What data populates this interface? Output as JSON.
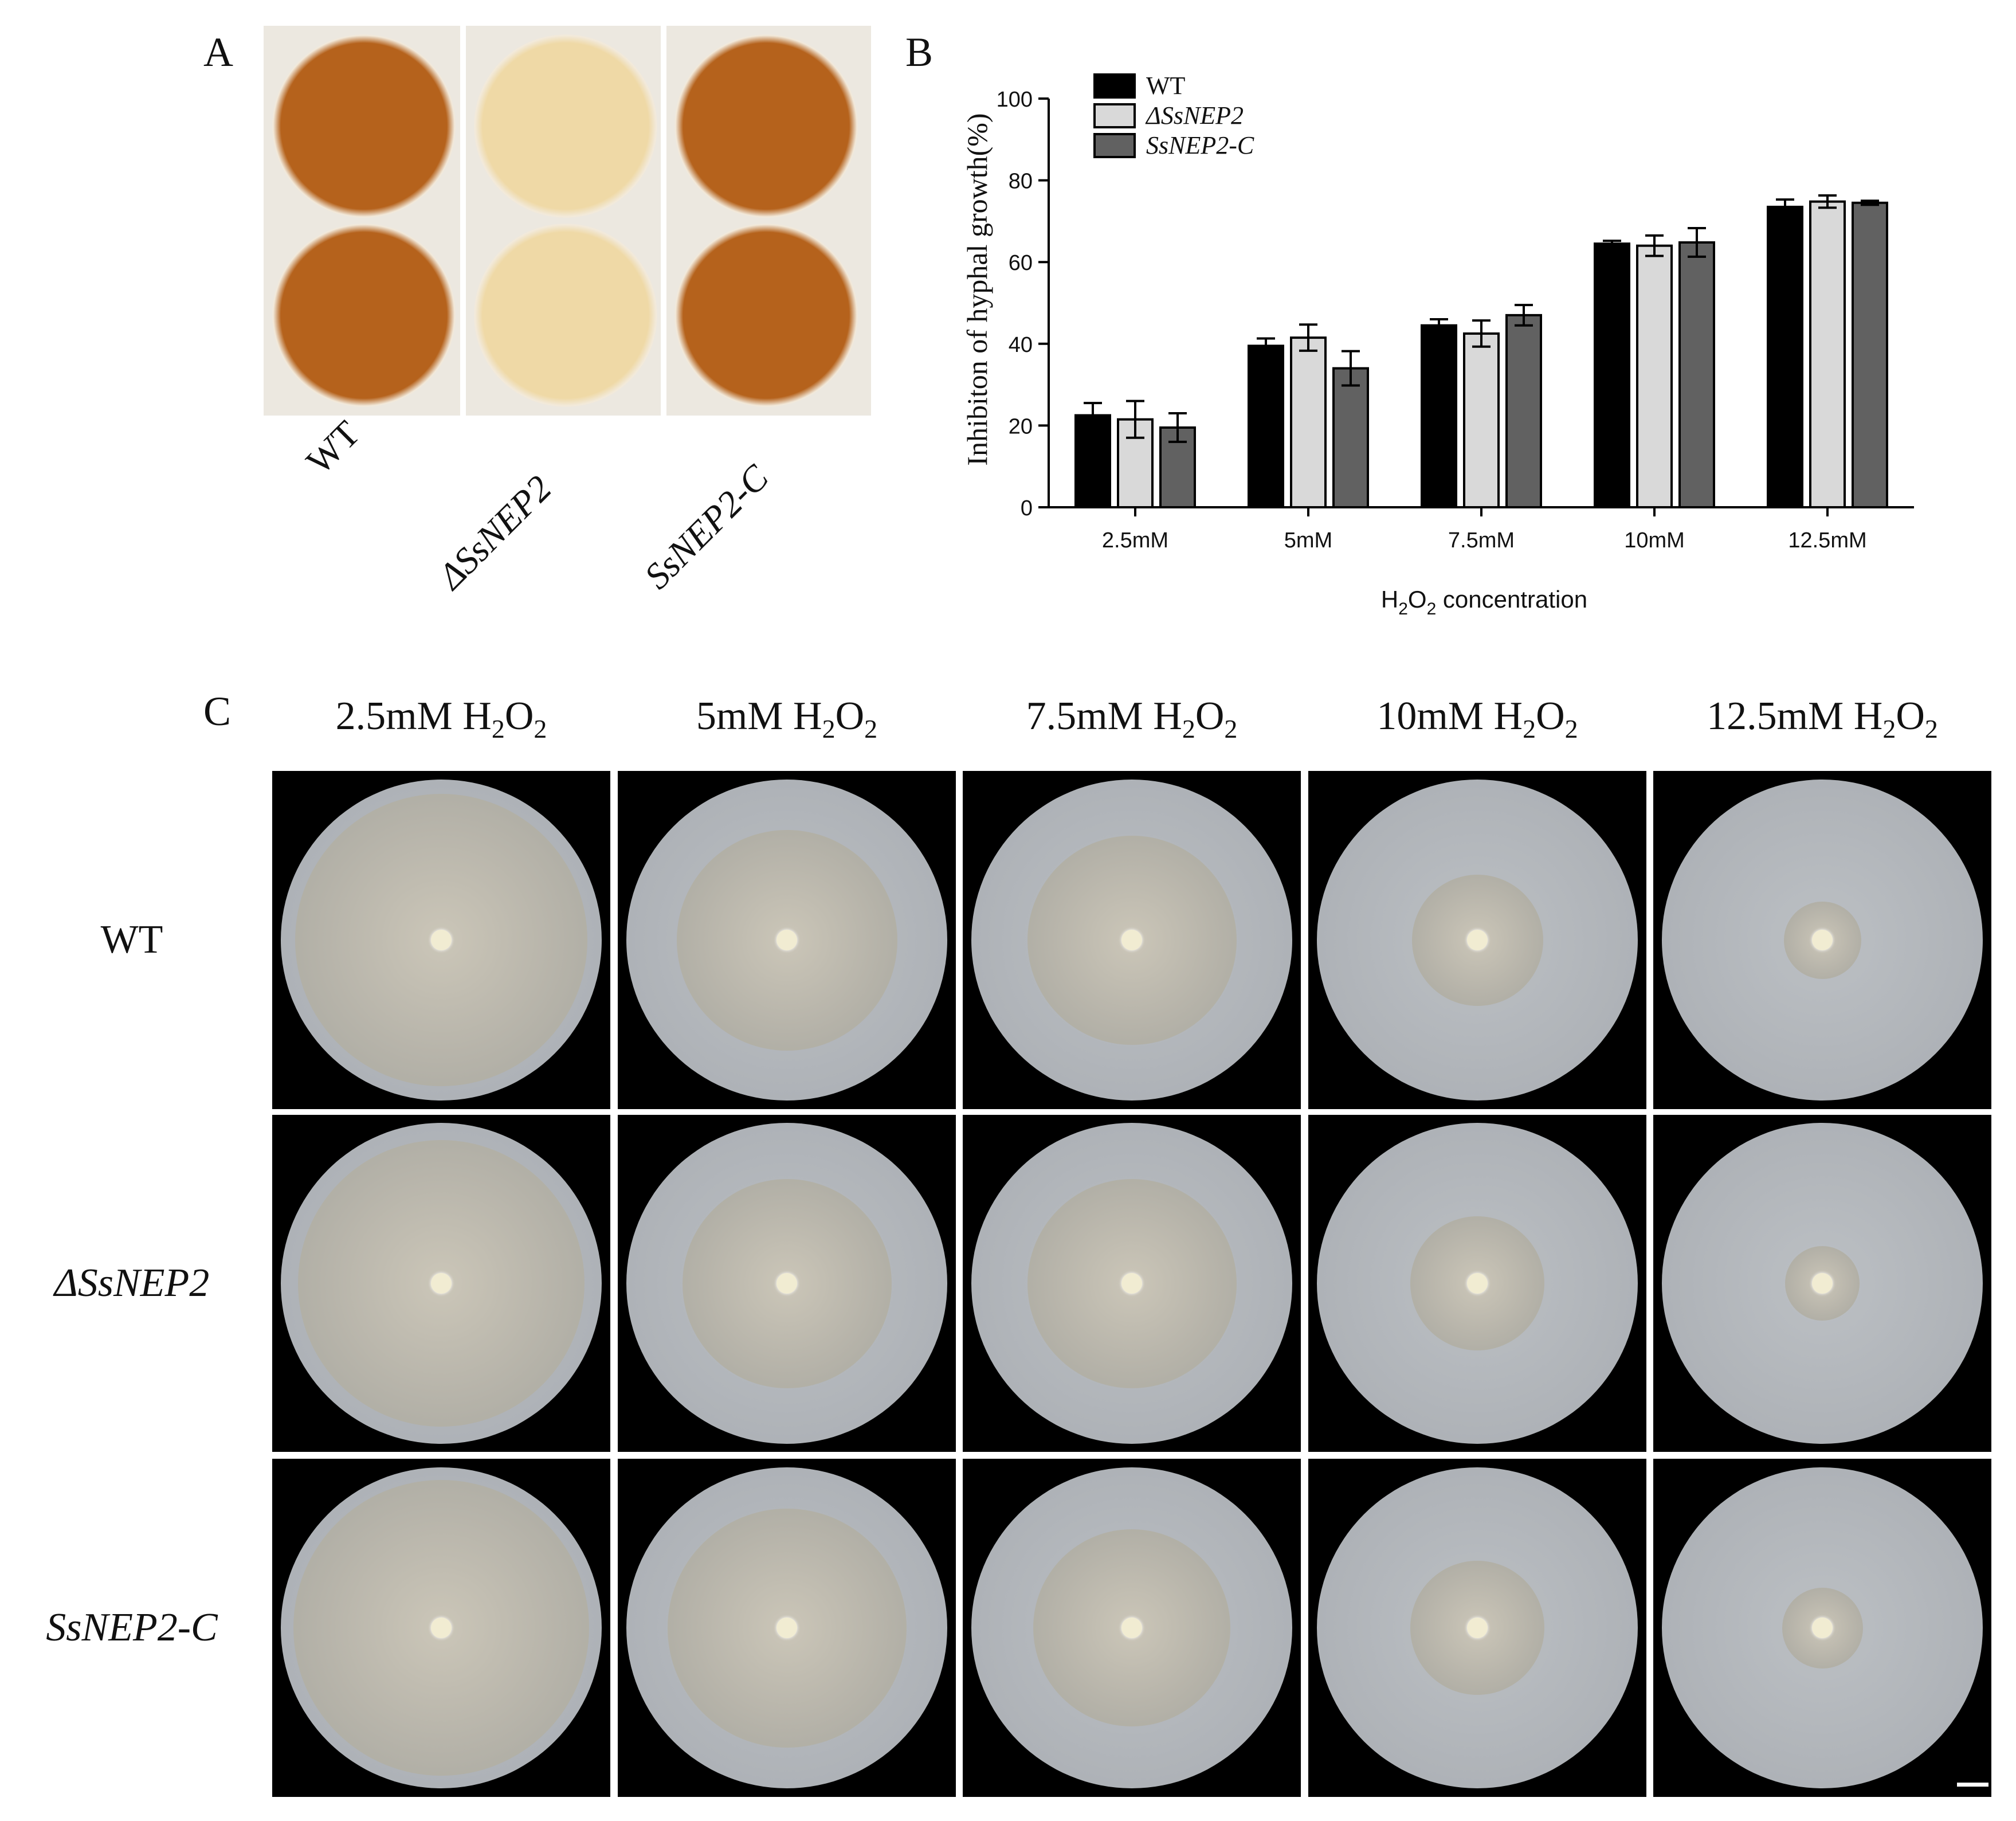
{
  "panel_a": {
    "letter": "A",
    "labels": [
      "WT",
      "ΔSsNEP2",
      "SsNEP2-C"
    ],
    "well_colors": [
      "#b5621c",
      "#efd9a6",
      "#b5621c"
    ]
  },
  "panel_b": {
    "letter": "B"
  },
  "chart_data": {
    "type": "bar",
    "categories": [
      "2.5mM",
      "5mM",
      "7.5mM",
      "10mM",
      "12.5mM"
    ],
    "series": [
      {
        "name": "WT",
        "color": "#000000",
        "values": [
          22.5,
          39.5,
          44.5,
          64.5,
          73.5
        ],
        "errors": [
          3.0,
          1.8,
          1.5,
          0.7,
          1.8
        ]
      },
      {
        "name": "ΔSsNEP2",
        "color": "#d9d9d9",
        "values": [
          21.5,
          41.5,
          42.5,
          64.0,
          74.8
        ],
        "errors": [
          4.5,
          3.2,
          3.2,
          2.5,
          1.5
        ]
      },
      {
        "name": "SsNEP2-C",
        "color": "#616161",
        "values": [
          19.5,
          34.0,
          47.0,
          64.8,
          74.5
        ],
        "errors": [
          3.5,
          4.2,
          2.5,
          3.5,
          0.5
        ]
      }
    ],
    "ylim": [
      0,
      100
    ],
    "yticks": [
      0,
      20,
      40,
      60,
      80,
      100
    ],
    "ylabel": "Inhibiton of hyphal growth(%)",
    "xlabel_main": "H",
    "xlabel_sub1": "2",
    "xlabel_mid": "O",
    "xlabel_sub2": "2",
    "xlabel_rest": " concentration",
    "legend_position": "top-left"
  },
  "panel_c": {
    "letter": "C",
    "columns": [
      {
        "conc": "2.5mM H",
        "sub1": "2",
        "mid": "O",
        "sub2": "2"
      },
      {
        "conc": "5mM H",
        "sub1": "2",
        "mid": "O",
        "sub2": "2"
      },
      {
        "conc": "7.5mM H",
        "sub1": "2",
        "mid": "O",
        "sub2": "2"
      },
      {
        "conc": "10mM H",
        "sub1": "2",
        "mid": "O",
        "sub2": "2"
      },
      {
        "conc": "12.5mM H",
        "sub1": "2",
        "mid": "O",
        "sub2": "2"
      }
    ],
    "rows": [
      "WT",
      "ΔSsNEP2",
      "SsNEP2-C"
    ],
    "colony_fractions": [
      [
        0.98,
        0.74,
        0.7,
        0.44,
        0.26
      ],
      [
        0.96,
        0.7,
        0.7,
        0.45,
        0.25
      ],
      [
        0.99,
        0.8,
        0.66,
        0.45,
        0.27
      ]
    ]
  }
}
